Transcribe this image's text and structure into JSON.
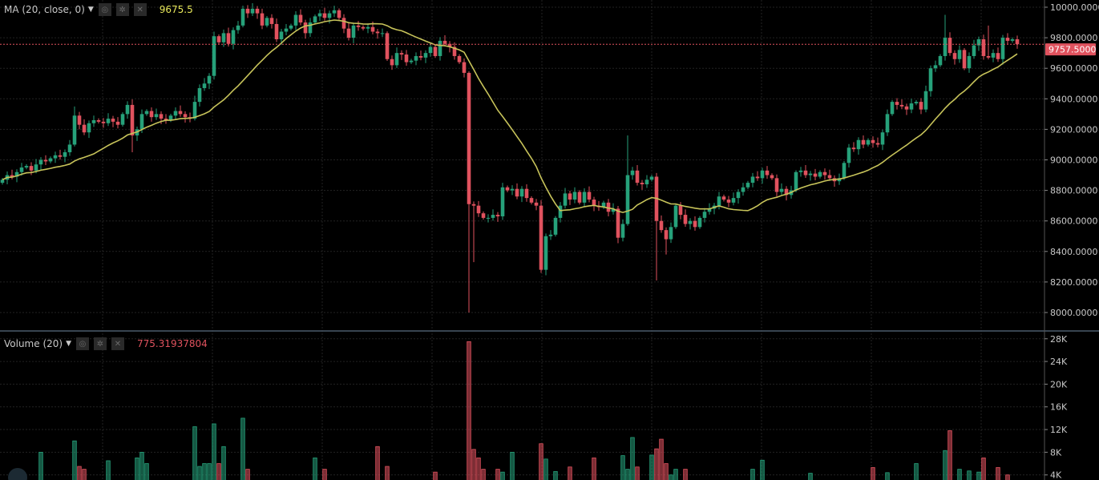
{
  "colors": {
    "up": "#26a17a",
    "down": "#e0525e",
    "ma": "#c7c35a",
    "background": "#000000",
    "grid": "#222222",
    "last_price": "#e0525e"
  },
  "legend_main": {
    "label": "MA (20, close, 0)",
    "value": "9675.5",
    "value_color": "#e8e85a",
    "icons": [
      "eye-icon",
      "gear-icon",
      "close-icon"
    ]
  },
  "legend_volume": {
    "label": "Volume (20)",
    "value": "775.31937804",
    "value_color": "#e0525e",
    "icons": [
      "eye-icon",
      "gear-icon",
      "close-icon"
    ]
  },
  "chart_data": [
    {
      "type": "candlestick",
      "price_ticks": [
        "10000.0000",
        "9800.0000",
        "9600.0000",
        "9400.0000",
        "9200.0000",
        "9000.0000",
        "8800.0000",
        "8600.0000",
        "8400.0000",
        "8200.0000",
        "8000.0000"
      ],
      "ylim": [
        8000,
        10000
      ],
      "last_price_label": "9757.5000",
      "last_price": 9757.5,
      "grid": true,
      "first_open": 8850,
      "close": [
        8870,
        8900,
        8890,
        8920,
        8950,
        8960,
        8930,
        8970,
        9000,
        8990,
        9010,
        9030,
        9020,
        9050,
        9100,
        9290,
        9230,
        9180,
        9240,
        9260,
        9250,
        9240,
        9270,
        9250,
        9230,
        9300,
        9360,
        9160,
        9200,
        9300,
        9320,
        9280,
        9300,
        9270,
        9260,
        9290,
        9320,
        9300,
        9280,
        9270,
        9380,
        9470,
        9500,
        9550,
        9810,
        9770,
        9830,
        9760,
        9850,
        9880,
        9990,
        9960,
        9990,
        9960,
        9880,
        9930,
        9890,
        9790,
        9840,
        9860,
        9880,
        9950,
        9900,
        9830,
        9900,
        9940,
        9960,
        9930,
        9960,
        9980,
        9930,
        9860,
        9800,
        9880,
        9870,
        9860,
        9870,
        9840,
        9830,
        9830,
        9660,
        9620,
        9700,
        9690,
        9640,
        9650,
        9680,
        9670,
        9700,
        9740,
        9680,
        9780,
        9760,
        9740,
        9680,
        9640,
        9570,
        8710,
        8700,
        8650,
        8620,
        8620,
        8640,
        8630,
        8820,
        8800,
        8810,
        8760,
        8810,
        8750,
        8720,
        8700,
        8280,
        8500,
        8510,
        8620,
        8700,
        8780,
        8740,
        8790,
        8720,
        8790,
        8740,
        8700,
        8690,
        8720,
        8660,
        8680,
        8490,
        8580,
        8900,
        8930,
        8850,
        8840,
        8870,
        8890,
        8600,
        8540,
        8480,
        8560,
        8700,
        8640,
        8580,
        8600,
        8560,
        8620,
        8660,
        8680,
        8700,
        8760,
        8740,
        8720,
        8750,
        8790,
        8820,
        8850,
        8890,
        8880,
        8930,
        8900,
        8880,
        8790,
        8810,
        8770,
        8800,
        8920,
        8930,
        8900,
        8910,
        8890,
        8920,
        8900,
        8880,
        8860,
        8880,
        8980,
        9080,
        9070,
        9130,
        9100,
        9130,
        9110,
        9100,
        9180,
        9300,
        9380,
        9360,
        9350,
        9330,
        9370,
        9380,
        9330,
        9450,
        9600,
        9620,
        9680,
        9800,
        9700,
        9660,
        9720,
        9600,
        9680,
        9750,
        9790,
        9680,
        9670,
        9700,
        9660,
        9800,
        9780,
        9790,
        9757.5
      ],
      "notable_highs": [
        [
          15,
          9350
        ],
        [
          40,
          9420
        ],
        [
          50,
          10010
        ],
        [
          97,
          9580
        ],
        [
          130,
          9160
        ],
        [
          196,
          9950
        ],
        [
          205,
          9880
        ]
      ],
      "notable_lows": [
        [
          27,
          9050
        ],
        [
          97,
          8000
        ],
        [
          98,
          8330
        ],
        [
          112,
          8260
        ],
        [
          136,
          8210
        ],
        [
          138,
          8380
        ]
      ],
      "ma": {
        "period": 20,
        "source": "close"
      }
    },
    {
      "type": "bar",
      "name": "Volume",
      "ticks": [
        "28K",
        "24K",
        "20K",
        "16K",
        "12K",
        "8K",
        "4K"
      ],
      "ylim": [
        0,
        28000
      ],
      "values_k": [
        [
          8,
          8
        ],
        [
          15,
          10
        ],
        [
          16,
          5.5
        ],
        [
          17,
          5
        ],
        [
          22,
          6.5
        ],
        [
          28,
          7
        ],
        [
          29,
          8
        ],
        [
          30,
          6
        ],
        [
          40,
          12.5
        ],
        [
          41,
          5.5
        ],
        [
          42,
          6
        ],
        [
          43,
          6
        ],
        [
          44,
          13
        ],
        [
          45,
          6
        ],
        [
          46,
          9
        ],
        [
          50,
          14
        ],
        [
          51,
          5
        ],
        [
          65,
          7
        ],
        [
          67,
          5
        ],
        [
          78,
          9
        ],
        [
          80,
          5.5
        ],
        [
          90,
          4.5
        ],
        [
          97,
          27.5
        ],
        [
          98,
          8.5
        ],
        [
          99,
          7
        ],
        [
          100,
          5
        ],
        [
          103,
          5
        ],
        [
          104,
          4.5
        ],
        [
          106,
          8
        ],
        [
          112,
          9.5
        ],
        [
          113,
          6.8
        ],
        [
          115,
          4.6
        ],
        [
          118,
          5.4
        ],
        [
          123,
          7
        ],
        [
          129,
          7.4
        ],
        [
          130,
          5
        ],
        [
          131,
          10.6
        ],
        [
          132,
          5.4
        ],
        [
          135,
          7.5
        ],
        [
          136,
          8.6
        ],
        [
          137,
          10.3
        ],
        [
          138,
          6
        ],
        [
          139,
          4
        ],
        [
          140,
          5
        ],
        [
          142,
          5
        ],
        [
          156,
          5
        ],
        [
          158,
          6.6
        ],
        [
          168,
          4.3
        ],
        [
          181,
          5.3
        ],
        [
          184,
          4.4
        ],
        [
          190,
          6
        ],
        [
          196,
          8.3
        ],
        [
          197,
          11.8
        ],
        [
          199,
          5
        ],
        [
          201,
          4.7
        ],
        [
          203,
          4.5
        ],
        [
          204,
          7
        ],
        [
          207,
          5.3
        ],
        [
          209,
          4
        ]
      ]
    }
  ]
}
